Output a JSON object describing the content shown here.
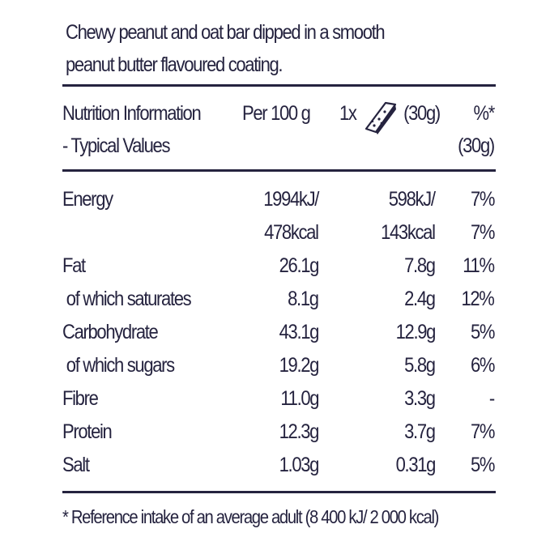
{
  "description": {
    "line1": "Chewy peanut and oat bar dipped in a smooth",
    "line2": "peanut butter flavoured coating."
  },
  "header": {
    "col1_line1": "Nutrition Information",
    "col1_line2": "- Typical Values",
    "col2": "Per 100 g",
    "col3_prefix": "1x",
    "col3_suffix": "(30g)",
    "col4_line1": "%*",
    "col4_line2": "(30g)",
    "icon": "snack-bar-icon"
  },
  "rows": [
    {
      "name": "Energy",
      "per100": "1994kJ/",
      "serving": "598kJ/",
      "ri": "7%"
    },
    {
      "name": "",
      "per100": "478kcal",
      "serving": "143kcal",
      "ri": "7%"
    },
    {
      "name": "Fat",
      "per100": "26.1g",
      "serving": "7.8g",
      "ri": "11%"
    },
    {
      "name": " of which saturates",
      "per100": "8.1g",
      "serving": "2.4g",
      "ri": "12%"
    },
    {
      "name": "Carbohydrate",
      "per100": "43.1g",
      "serving": "12.9g",
      "ri": "5%"
    },
    {
      "name": " of which sugars",
      "per100": "19.2g",
      "serving": "5.8g",
      "ri": "6%"
    },
    {
      "name": "Fibre",
      "per100": "11.0g",
      "serving": "3.3g",
      "ri": "-"
    },
    {
      "name": "Protein",
      "per100": "12.3g",
      "serving": "3.7g",
      "ri": "7%"
    },
    {
      "name": "Salt",
      "per100": "1.03g",
      "serving": "0.31g",
      "ri": "5%"
    }
  ],
  "footnote": "* Reference intake of an average adult (8 400 kJ/ 2 000 kcal)",
  "colors": {
    "text": "#25233f",
    "background": "#ffffff"
  }
}
